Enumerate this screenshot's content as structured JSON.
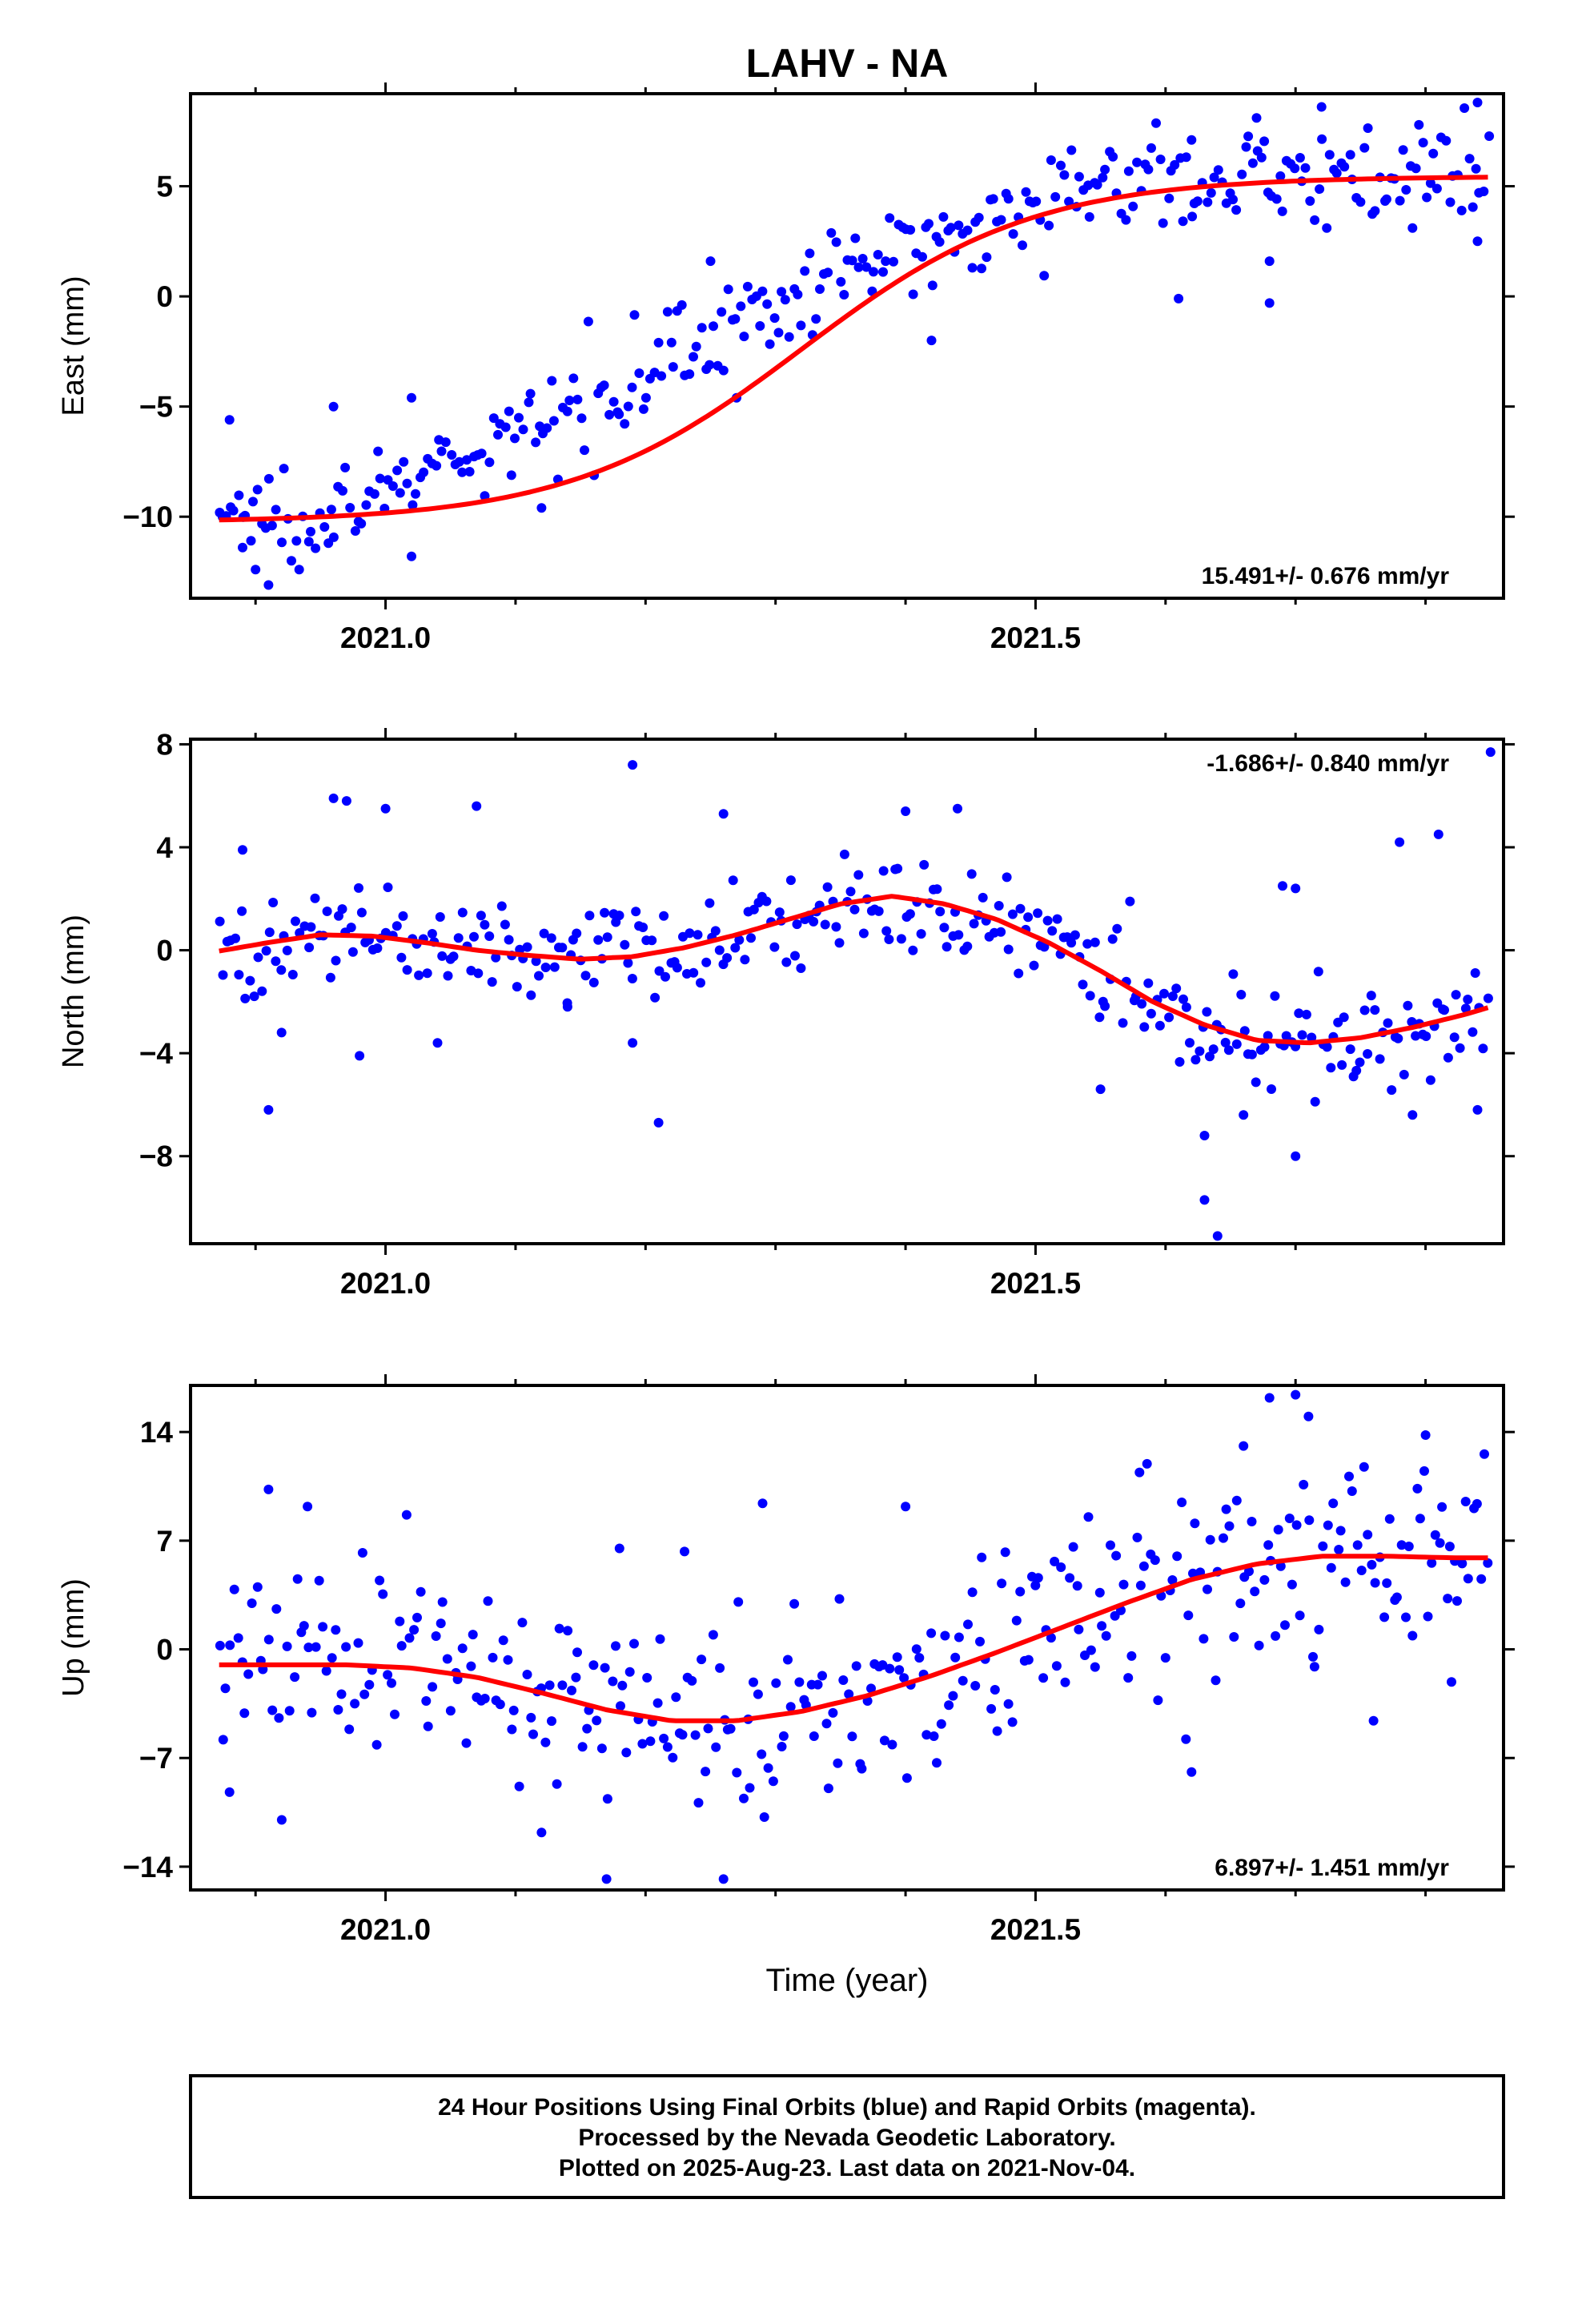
{
  "title": "LAHV - NA",
  "xlabel": "Time (year)",
  "footer": {
    "line1": "24 Hour Positions Using Final Orbits (blue) and Rapid Orbits (magenta).",
    "line2": "Processed by the Nevada Geodetic Laboratory.",
    "line3": "Plotted on 2025-Aug-23. Last data on 2021-Nov-04."
  },
  "colors": {
    "points": "#0000ff",
    "fit": "#ff0000",
    "frame": "#000000"
  },
  "chart_data": [
    {
      "type": "scatter",
      "ylabel": "East (mm)",
      "rate": "15.491+/- 0.676 mm/yr",
      "xlim": [
        2020.85,
        2021.86
      ],
      "ylim": [
        -13.7,
        9.2
      ],
      "xticks": [
        2021.0,
        2021.5
      ],
      "xtick_labels": [
        "2021.0",
        "2021.5"
      ],
      "yticks": [
        -10,
        -5,
        0,
        5
      ],
      "ytick_labels": [
        "−10",
        "−5",
        "0",
        "5"
      ],
      "fit": {
        "mean": -2.4,
        "amp": 7.85,
        "center": 2021.32,
        "width": 0.178
      },
      "points": {
        "anchors": [
          [
            2020.87,
            -9.8
          ],
          [
            2020.92,
            -9.9
          ],
          [
            2020.97,
            -9.4
          ],
          [
            2021.0,
            -8.7
          ],
          [
            2021.05,
            -7.9
          ],
          [
            2021.1,
            -6.6
          ],
          [
            2021.15,
            -4.8
          ],
          [
            2021.2,
            -3.1
          ],
          [
            2021.25,
            -1.6
          ],
          [
            2021.3,
            -0.6
          ],
          [
            2021.35,
            0.8
          ],
          [
            2021.4,
            2.2
          ],
          [
            2021.45,
            3.3
          ],
          [
            2021.5,
            4.4
          ],
          [
            2021.55,
            5.0
          ],
          [
            2021.6,
            5.5
          ],
          [
            2021.65,
            5.3
          ],
          [
            2021.7,
            5.6
          ],
          [
            2021.75,
            5.4
          ],
          [
            2021.8,
            5.6
          ],
          [
            2021.85,
            5.3
          ]
        ],
        "count": 330,
        "spread": 1.05,
        "outliers": [
          [
            2020.9,
            -12.4
          ],
          [
            2020.89,
            -11.4
          ],
          [
            2020.91,
            -13.1
          ],
          [
            2021.02,
            -11.8
          ],
          [
            2020.96,
            -5.0
          ],
          [
            2021.02,
            -4.6
          ],
          [
            2020.88,
            -5.6
          ],
          [
            2021.61,
            -0.1
          ],
          [
            2021.68,
            -0.3
          ],
          [
            2021.68,
            1.6
          ],
          [
            2021.27,
            -4.6
          ],
          [
            2021.25,
            1.6
          ],
          [
            2021.12,
            -9.6
          ],
          [
            2021.42,
            -2.0
          ],
          [
            2021.62,
            7.1
          ],
          [
            2021.67,
            8.1
          ],
          [
            2021.72,
            8.6
          ],
          [
            2021.84,
            8.8
          ],
          [
            2021.84,
            2.5
          ],
          [
            2021.79,
            3.1
          ]
        ]
      }
    },
    {
      "type": "scatter",
      "ylabel": "North (mm)",
      "rate": "-1.686+/- 0.840 mm/yr",
      "xlim": [
        2020.85,
        2021.86
      ],
      "ylim": [
        -11.4,
        8.2
      ],
      "xticks": [
        2021.0,
        2021.5
      ],
      "xtick_labels": [
        "2021.0",
        "2021.5"
      ],
      "yticks": [
        -8,
        -4,
        0,
        4,
        8
      ],
      "ytick_labels": [
        "−8",
        "−4",
        "0",
        "4",
        "8"
      ],
      "fit_curve": [
        [
          2020.87,
          -0.05
        ],
        [
          2020.91,
          0.3
        ],
        [
          2020.95,
          0.6
        ],
        [
          2020.99,
          0.55
        ],
        [
          2021.03,
          0.3
        ],
        [
          2021.07,
          0.0
        ],
        [
          2021.11,
          -0.2
        ],
        [
          2021.15,
          -0.35
        ],
        [
          2021.19,
          -0.25
        ],
        [
          2021.23,
          0.1
        ],
        [
          2021.27,
          0.6
        ],
        [
          2021.31,
          1.2
        ],
        [
          2021.35,
          1.8
        ],
        [
          2021.39,
          2.1
        ],
        [
          2021.43,
          1.8
        ],
        [
          2021.47,
          1.2
        ],
        [
          2021.51,
          0.3
        ],
        [
          2021.55,
          -0.8
        ],
        [
          2021.59,
          -2.0
        ],
        [
          2021.63,
          -2.9
        ],
        [
          2021.67,
          -3.5
        ],
        [
          2021.71,
          -3.6
        ],
        [
          2021.75,
          -3.4
        ],
        [
          2021.79,
          -3.0
        ],
        [
          2021.83,
          -2.5
        ],
        [
          2021.85,
          -2.2
        ]
      ],
      "points": {
        "count": 330,
        "spread": 1.0,
        "outliers": [
          [
            2020.89,
            3.9
          ],
          [
            2020.91,
            -6.2
          ],
          [
            2020.96,
            5.9
          ],
          [
            2020.97,
            5.8
          ],
          [
            2021.0,
            5.5
          ],
          [
            2021.07,
            5.6
          ],
          [
            2021.19,
            7.2
          ],
          [
            2021.21,
            -6.7
          ],
          [
            2021.26,
            5.3
          ],
          [
            2021.4,
            5.4
          ],
          [
            2021.44,
            5.5
          ],
          [
            2021.63,
            -9.7
          ],
          [
            2021.64,
            -11.1
          ],
          [
            2021.63,
            -7.2
          ],
          [
            2021.7,
            -8.0
          ],
          [
            2021.69,
            2.5
          ],
          [
            2021.78,
            4.2
          ],
          [
            2021.81,
            4.5
          ],
          [
            2021.79,
            -6.4
          ],
          [
            2021.85,
            7.7
          ],
          [
            2021.84,
            -6.2
          ],
          [
            2021.55,
            -5.4
          ],
          [
            2021.66,
            -6.4
          ],
          [
            2021.7,
            2.4
          ],
          [
            2020.92,
            -3.2
          ],
          [
            2020.98,
            -4.1
          ],
          [
            2021.04,
            -3.6
          ],
          [
            2021.14,
            -2.2
          ],
          [
            2021.19,
            -3.6
          ]
        ]
      }
    },
    {
      "type": "scatter",
      "ylabel": "Up (mm)",
      "rate": "6.897+/- 1.451 mm/yr",
      "xlim": [
        2020.85,
        2021.86
      ],
      "ylim": [
        -15.5,
        17.0
      ],
      "xticks": [
        2021.0,
        2021.5
      ],
      "xtick_labels": [
        "2021.0",
        "2021.5"
      ],
      "yticks": [
        -14,
        -7,
        0,
        7,
        14
      ],
      "ytick_labels": [
        "−14",
        "−7",
        "0",
        "7",
        "14"
      ],
      "fit_curve": [
        [
          2020.87,
          -1.0
        ],
        [
          2020.92,
          -1.0
        ],
        [
          2020.97,
          -1.0
        ],
        [
          2021.02,
          -1.2
        ],
        [
          2021.07,
          -1.8
        ],
        [
          2021.12,
          -2.8
        ],
        [
          2021.17,
          -3.9
        ],
        [
          2021.22,
          -4.6
        ],
        [
          2021.27,
          -4.6
        ],
        [
          2021.32,
          -4.0
        ],
        [
          2021.37,
          -3.0
        ],
        [
          2021.42,
          -1.7
        ],
        [
          2021.47,
          -0.2
        ],
        [
          2021.52,
          1.4
        ],
        [
          2021.57,
          3.0
        ],
        [
          2021.62,
          4.5
        ],
        [
          2021.67,
          5.5
        ],
        [
          2021.72,
          6.0
        ],
        [
          2021.77,
          6.0
        ],
        [
          2021.82,
          5.9
        ],
        [
          2021.85,
          5.9
        ]
      ],
      "points": {
        "count": 340,
        "spread": 3.2,
        "outliers": [
          [
            2020.91,
            10.3
          ],
          [
            2020.94,
            9.2
          ],
          [
            2020.88,
            -9.2
          ],
          [
            2021.17,
            -14.8
          ],
          [
            2021.26,
            -14.8
          ],
          [
            2021.29,
            9.4
          ],
          [
            2021.12,
            -11.8
          ],
          [
            2021.18,
            6.5
          ],
          [
            2021.23,
            6.3
          ],
          [
            2021.4,
            9.2
          ],
          [
            2021.68,
            16.2
          ],
          [
            2021.7,
            16.4
          ],
          [
            2021.71,
            15.0
          ],
          [
            2021.66,
            13.1
          ],
          [
            2021.8,
            13.8
          ],
          [
            2021.62,
            -7.9
          ],
          [
            2021.76,
            -4.6
          ],
          [
            2021.82,
            -2.1
          ],
          [
            2021.58,
            11.4
          ]
        ]
      }
    }
  ]
}
